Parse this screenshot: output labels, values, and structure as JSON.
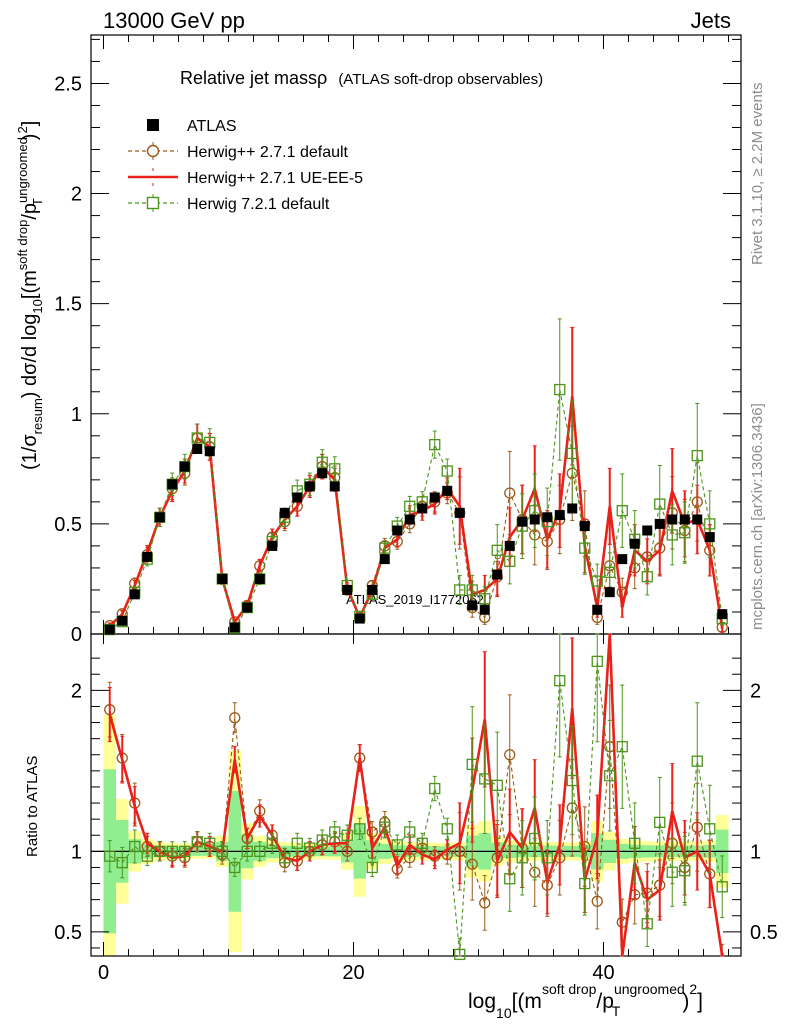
{
  "header": {
    "left": "13000 GeV pp",
    "right": "Jets"
  },
  "side_labels": {
    "rivet": "Rivet 3.1.10, ≥ 2.2M events",
    "mcplots": "mcplots.cern.ch [arXiv:1306.3436]"
  },
  "watermark": "ATLAS_2019_I1772062",
  "chart_data": {
    "type": "line",
    "title_main": "Relative jet massρ",
    "title_sub": "(ATLAS soft-drop observables)",
    "ylabel_top": "(1/σ_resum) dσ/d log10[(m^soft drop/pT^ungroomed)^2]",
    "ylabel_bottom": "Ratio to ATLAS",
    "xlabel": "log10[(m^soft drop/pT^ungroomed)^2]",
    "xlim": [
      -1,
      51
    ],
    "ylim_top": [
      0,
      2.72
    ],
    "ylim_bottom": [
      0.35,
      2.35
    ],
    "log_scale_bottom": false,
    "grid": false,
    "legend_position": "top-left",
    "x_ticks": [
      "0",
      "20",
      "40"
    ],
    "y_ticks_top": [
      "0",
      "0.5",
      "1",
      "1.5",
      "2",
      "2.5"
    ],
    "y_ticks_bottom": [
      "0.5",
      "1",
      "2"
    ],
    "x": [
      0.5,
      1.5,
      2.5,
      3.5,
      4.5,
      5.5,
      6.5,
      7.5,
      8.5,
      9.5,
      10.5,
      11.5,
      12.5,
      13.5,
      14.5,
      15.5,
      16.5,
      17.5,
      18.5,
      19.5,
      20.5,
      21.5,
      22.5,
      23.5,
      24.5,
      25.5,
      26.5,
      27.5,
      28.5,
      29.5,
      30.5,
      31.5,
      32.5,
      33.5,
      34.5,
      35.5,
      36.5,
      37.5,
      38.5,
      39.5,
      40.5,
      41.5,
      42.5,
      43.5,
      44.5,
      45.5,
      46.5,
      47.5,
      48.5,
      49.5
    ],
    "series": [
      {
        "name": "ATLAS",
        "style": "marker-square",
        "color": "#000000",
        "values": [
          0.02,
          0.06,
          0.18,
          0.35,
          0.53,
          0.68,
          0.76,
          0.84,
          0.83,
          0.25,
          0.03,
          0.12,
          0.25,
          0.4,
          0.55,
          0.62,
          0.67,
          0.73,
          0.67,
          0.2,
          0.07,
          0.2,
          0.34,
          0.47,
          0.52,
          0.57,
          0.62,
          0.65,
          0.55,
          0.13,
          0.11,
          0.27,
          0.4,
          0.51,
          0.52,
          0.53,
          0.54,
          0.57,
          0.49,
          0.11,
          0.19,
          0.34,
          0.41,
          0.47,
          0.5,
          0.52,
          0.52,
          0.52,
          0.44,
          0.09
        ]
      },
      {
        "name": "Herwig++ 2.7.1 default",
        "style": "dashed-circle",
        "color": "#9a5a16",
        "values": [
          0.038,
          0.092,
          0.23,
          0.36,
          0.53,
          0.66,
          0.73,
          0.89,
          0.85,
          0.25,
          0.055,
          0.13,
          0.31,
          0.44,
          0.51,
          0.58,
          0.67,
          0.76,
          0.71,
          0.2,
          0.075,
          0.22,
          0.4,
          0.42,
          0.5,
          0.58,
          0.6,
          0.64,
          0.55,
          0.12,
          0.075,
          0.26,
          0.64,
          0.52,
          0.45,
          0.42,
          0.52,
          0.73,
          0.5,
          0.075,
          0.31,
          0.19,
          0.3,
          0.35,
          0.39,
          0.55,
          0.47,
          0.6,
          0.38,
          0.03
        ]
      },
      {
        "name": "Herwig++ 2.7.1 UE-EE-5",
        "style": "solid",
        "color": "#e8221b",
        "values": [
          0.037,
          0.09,
          0.22,
          0.37,
          0.53,
          0.65,
          0.74,
          0.89,
          0.85,
          0.25,
          0.055,
          0.13,
          0.31,
          0.44,
          0.52,
          0.58,
          0.67,
          0.76,
          0.7,
          0.21,
          0.075,
          0.2,
          0.39,
          0.43,
          0.54,
          0.56,
          0.59,
          0.66,
          0.58,
          0.18,
          0.2,
          0.25,
          0.44,
          0.52,
          0.66,
          0.43,
          0.56,
          1.08,
          0.4,
          0.12,
          0.58,
          0.12,
          0.38,
          0.33,
          0.38,
          0.65,
          0.5,
          0.52,
          0.38,
          0.025
        ]
      },
      {
        "name": "Herwig 7.2.1 default",
        "style": "dashed-open-square",
        "color": "#4d941b",
        "values": [
          0.02,
          0.056,
          0.19,
          0.34,
          0.53,
          0.68,
          0.76,
          0.89,
          0.87,
          0.25,
          0.027,
          0.12,
          0.25,
          0.42,
          0.53,
          0.65,
          0.68,
          0.78,
          0.75,
          0.22,
          0.08,
          0.18,
          0.39,
          0.49,
          0.58,
          0.6,
          0.86,
          0.74,
          0.2,
          0.2,
          0.16,
          0.38,
          0.33,
          0.49,
          0.56,
          0.51,
          1.11,
          0.82,
          0.39,
          0.24,
          0.28,
          0.56,
          0.43,
          0.26,
          0.59,
          0.45,
          0.46,
          0.81,
          0.5,
          0.07
        ]
      }
    ],
    "ratio_series": [
      {
        "name": "Herwig++ 2.7.1 default",
        "values": [
          1.88,
          1.58,
          1.3,
          1.03,
          1.0,
          0.97,
          0.96,
          1.06,
          1.03,
          0.98,
          1.83,
          1.08,
          1.25,
          1.1,
          0.93,
          0.94,
          1.0,
          1.04,
          1.06,
          1.0,
          1.58,
          1.12,
          1.18,
          0.89,
          0.96,
          1.02,
          0.97,
          0.98,
          1.0,
          0.92,
          0.68,
          0.96,
          1.6,
          1.02,
          0.87,
          0.79,
          0.96,
          1.27,
          1.03,
          0.69,
          1.65,
          0.56,
          0.73,
          0.74,
          0.79,
          1.05,
          0.9,
          1.15,
          0.86,
          0.33
        ]
      },
      {
        "name": "Herwig++ 2.7.1 UE-EE-5",
        "values": [
          1.85,
          1.57,
          1.28,
          1.05,
          1.0,
          0.96,
          0.97,
          1.06,
          1.03,
          1.0,
          1.57,
          1.08,
          1.22,
          1.1,
          0.96,
          0.94,
          1.0,
          1.04,
          1.05,
          1.05,
          1.58,
          1.02,
          1.15,
          0.91,
          1.04,
          0.98,
          0.95,
          1.01,
          1.05,
          1.38,
          1.82,
          0.94,
          1.12,
          1.02,
          1.27,
          0.81,
          1.04,
          1.89,
          0.82,
          1.09,
          3.05,
          0.35,
          0.93,
          0.7,
          0.76,
          1.25,
          0.96,
          1.0,
          0.86,
          0.28
        ]
      },
      {
        "name": "Herwig 7.2.1 default",
        "values": [
          0.97,
          0.93,
          1.03,
          0.97,
          1.0,
          1.0,
          1.0,
          1.06,
          1.05,
          1.0,
          0.9,
          1.0,
          1.0,
          1.05,
          0.96,
          1.05,
          1.02,
          1.07,
          1.12,
          1.1,
          1.14,
          0.9,
          1.15,
          1.04,
          1.12,
          1.05,
          1.39,
          1.14,
          0.36,
          1.54,
          1.45,
          1.41,
          0.83,
          0.96,
          1.08,
          0.96,
          2.06,
          1.44,
          0.8,
          2.18,
          1.47,
          1.65,
          1.05,
          0.55,
          1.18,
          0.87,
          0.88,
          1.56,
          1.14,
          0.78
        ]
      }
    ]
  }
}
